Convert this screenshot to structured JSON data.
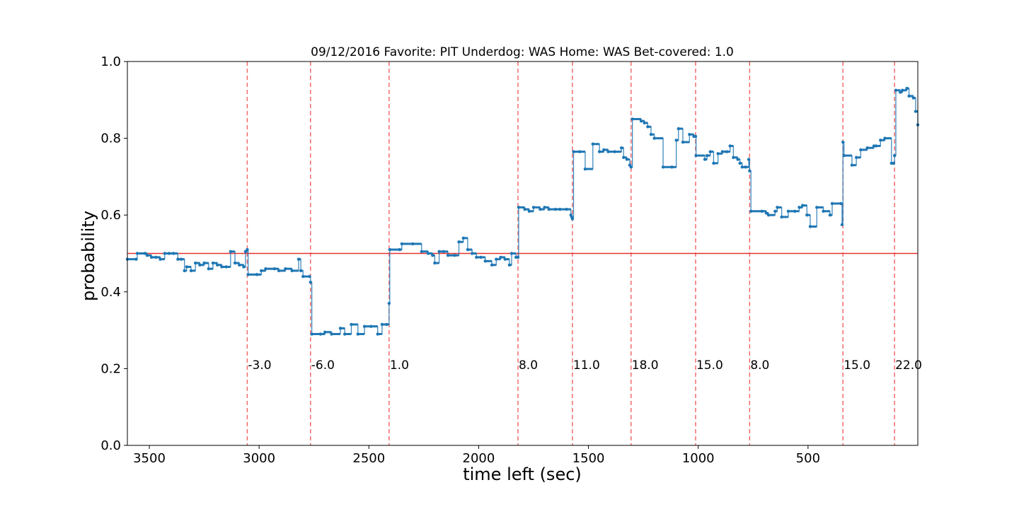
{
  "chart_data": {
    "type": "line",
    "title": "09/12/2016 Favorite: PIT Underdog: WAS Home: WAS Bet-covered: 1.0",
    "xlabel": "time left (sec)",
    "ylabel": "probability",
    "xlim": [
      3600,
      0
    ],
    "ylim": [
      0.0,
      1.0
    ],
    "x_ticks": [
      3500,
      3000,
      2500,
      2000,
      1500,
      1000,
      500
    ],
    "x_tick_labels": [
      "3500",
      "3000",
      "2500",
      "2000",
      "1500",
      "1000",
      "500"
    ],
    "y_ticks": [
      0.0,
      0.2,
      0.4,
      0.6,
      0.8,
      1.0
    ],
    "y_tick_labels": [
      "0.0",
      "0.2",
      "0.4",
      "0.6",
      "0.8",
      "1.0"
    ],
    "grid": false,
    "baseline": {
      "y": 0.5,
      "color": "#e8322f"
    },
    "series_color": "#1f77b4",
    "score_lines": [
      {
        "x": 3054,
        "label": "-3.0"
      },
      {
        "x": 2766,
        "label": "-6.0"
      },
      {
        "x": 2408,
        "label": "1.0"
      },
      {
        "x": 1821,
        "label": "8.0"
      },
      {
        "x": 1573,
        "label": "11.0"
      },
      {
        "x": 1306,
        "label": "18.0"
      },
      {
        "x": 1012,
        "label": "15.0"
      },
      {
        "x": 766,
        "label": "8.0"
      },
      {
        "x": 341,
        "label": "15.0"
      },
      {
        "x": 106,
        "label": "22.0"
      }
    ],
    "series": [
      {
        "x": [
          3600,
          3560,
          3555,
          3520,
          3510,
          3490,
          3470,
          3450,
          3430,
          3410,
          3390,
          3370,
          3355,
          3340,
          3330,
          3310,
          3290,
          3270,
          3250,
          3230,
          3210,
          3190,
          3170,
          3150,
          3130,
          3110,
          3090,
          3070,
          3062,
          3054,
          3050,
          3010,
          2990,
          2970,
          2930,
          2910,
          2880,
          2850,
          2820,
          2810,
          2800,
          2770,
          2766,
          2760,
          2720,
          2700,
          2670,
          2630,
          2610,
          2580,
          2550,
          2520,
          2490,
          2460,
          2440,
          2420,
          2408,
          2405,
          2360,
          2350,
          2300,
          2260,
          2230,
          2210,
          2200,
          2180,
          2160,
          2140,
          2110,
          2090,
          2070,
          2050,
          2030,
          2010,
          1990,
          1970,
          1940,
          1920,
          1900,
          1880,
          1860,
          1850,
          1830,
          1821,
          1818,
          1790,
          1770,
          1750,
          1720,
          1700,
          1680,
          1650,
          1630,
          1600,
          1580,
          1576,
          1573,
          1568,
          1540,
          1515,
          1480,
          1450,
          1430,
          1410,
          1380,
          1350,
          1340,
          1325,
          1312,
          1306,
          1300,
          1260,
          1245,
          1230,
          1215,
          1200,
          1160,
          1120,
          1100,
          1090,
          1070,
          1040,
          1020,
          1012,
          1010,
          970,
          960,
          945,
          930,
          910,
          890,
          870,
          855,
          840,
          820,
          810,
          800,
          785,
          770,
          766,
          760,
          710,
          690,
          680,
          650,
          640,
          620,
          590,
          560,
          540,
          525,
          505,
          490,
          460,
          430,
          400,
          390,
          350,
          345,
          341,
          336,
          300,
          280,
          260,
          230,
          200,
          190,
          170,
          150,
          120,
          110,
          106,
          100,
          80,
          70,
          50,
          40,
          20,
          10,
          0
        ],
        "y": [
          0.485,
          0.485,
          0.5,
          0.5,
          0.495,
          0.49,
          0.49,
          0.485,
          0.5,
          0.5,
          0.5,
          0.485,
          0.485,
          0.455,
          0.465,
          0.455,
          0.475,
          0.47,
          0.475,
          0.46,
          0.475,
          0.47,
          0.465,
          0.465,
          0.505,
          0.475,
          0.47,
          0.465,
          0.505,
          0.51,
          0.445,
          0.445,
          0.455,
          0.46,
          0.46,
          0.455,
          0.46,
          0.455,
          0.485,
          0.455,
          0.44,
          0.44,
          0.425,
          0.29,
          0.29,
          0.295,
          0.29,
          0.305,
          0.29,
          0.315,
          0.29,
          0.31,
          0.31,
          0.29,
          0.315,
          0.315,
          0.37,
          0.51,
          0.51,
          0.525,
          0.525,
          0.505,
          0.5,
          0.495,
          0.475,
          0.505,
          0.505,
          0.495,
          0.495,
          0.53,
          0.54,
          0.51,
          0.5,
          0.49,
          0.49,
          0.48,
          0.47,
          0.485,
          0.49,
          0.485,
          0.47,
          0.5,
          0.49,
          0.49,
          0.62,
          0.615,
          0.61,
          0.62,
          0.615,
          0.62,
          0.615,
          0.615,
          0.615,
          0.615,
          0.6,
          0.595,
          0.59,
          0.765,
          0.765,
          0.72,
          0.785,
          0.765,
          0.77,
          0.765,
          0.765,
          0.775,
          0.75,
          0.745,
          0.73,
          0.725,
          0.85,
          0.845,
          0.84,
          0.83,
          0.81,
          0.8,
          0.725,
          0.725,
          0.795,
          0.825,
          0.79,
          0.81,
          0.805,
          0.805,
          0.755,
          0.745,
          0.755,
          0.765,
          0.735,
          0.76,
          0.765,
          0.765,
          0.78,
          0.75,
          0.745,
          0.735,
          0.725,
          0.725,
          0.745,
          0.715,
          0.61,
          0.61,
          0.605,
          0.6,
          0.61,
          0.62,
          0.595,
          0.61,
          0.61,
          0.62,
          0.625,
          0.6,
          0.57,
          0.62,
          0.61,
          0.6,
          0.63,
          0.63,
          0.575,
          0.79,
          0.755,
          0.73,
          0.75,
          0.77,
          0.775,
          0.78,
          0.78,
          0.795,
          0.8,
          0.735,
          0.735,
          0.755,
          0.925,
          0.92,
          0.925,
          0.93,
          0.91,
          0.905,
          0.87,
          0.835
        ]
      }
    ]
  }
}
